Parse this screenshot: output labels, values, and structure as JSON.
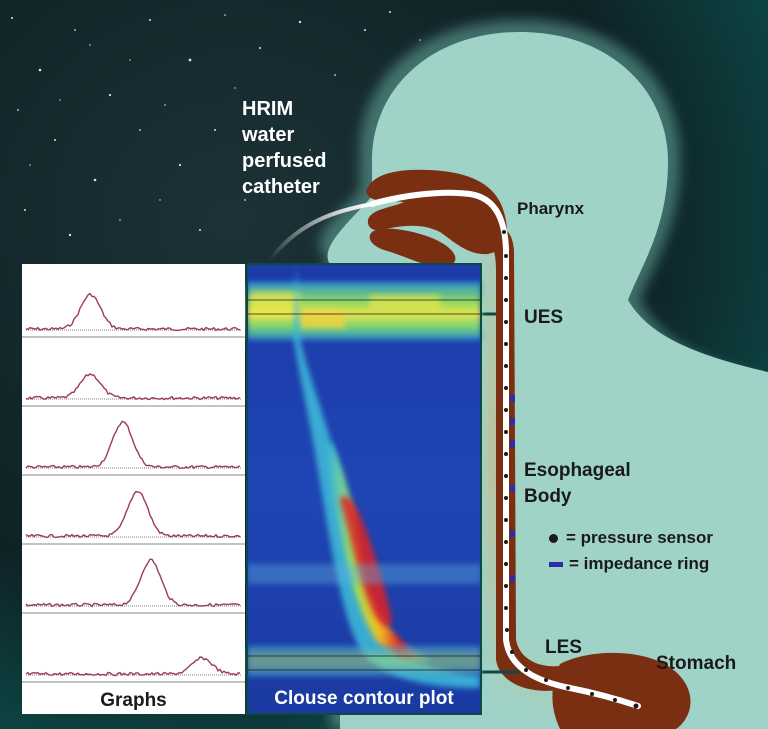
{
  "labels": {
    "catheter": [
      "HRIM",
      "water",
      "perfused",
      "catheter"
    ],
    "pharynx": "Pharynx",
    "ues": "UES",
    "esophageal_body": [
      "Esophageal",
      "Body"
    ],
    "les": "LES",
    "stomach": "Stomach"
  },
  "legend": [
    {
      "symbol": "pressure-sensor-dot",
      "text": "= pressure sensor"
    },
    {
      "symbol": "impedance-ring-dash",
      "text": "= impedance ring"
    }
  ],
  "panels": {
    "graphs_title": "Graphs",
    "contour_title": "Clouse contour plot"
  },
  "colors": {
    "space": "#0f2226",
    "silhouette": "#9fd3c7",
    "esophagus": "#7a2e12",
    "catheter": "#ffffff",
    "trace": "#9a3b5a",
    "impedance_ring": "#2d2da8",
    "connector": "#0b4a46"
  },
  "graph_traces": [
    {
      "peak_pos": 0.3,
      "peak_level": 0.65
    },
    {
      "peak_pos": 0.3,
      "peak_level": 0.45
    },
    {
      "peak_pos": 0.45,
      "peak_level": 0.85
    },
    {
      "peak_pos": 0.52,
      "peak_level": 0.85
    },
    {
      "peak_pos": 0.58,
      "peak_level": 0.85
    },
    {
      "peak_pos": 0.82,
      "peak_level": 0.3
    }
  ]
}
